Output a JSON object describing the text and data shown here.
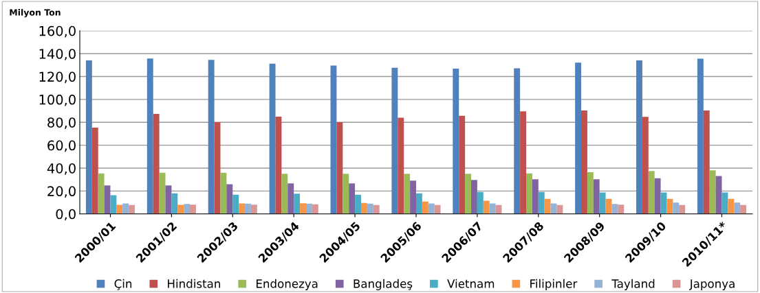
{
  "chart_data": {
    "type": "bar",
    "ylabel": "Milyon Ton",
    "categories": [
      "2000/01",
      "2001/02",
      "2002/03",
      "2003/04",
      "2004/05",
      "2005/06",
      "2006/07",
      "2007/08",
      "2008/09",
      "2009/10",
      "2010/11*"
    ],
    "series": [
      {
        "name": "Çin",
        "color": "#4f81bd",
        "values": [
          134.1,
          135.8,
          134.6,
          131.3,
          129.6,
          127.7,
          126.9,
          127.2,
          132.2,
          134.1,
          135.6
        ]
      },
      {
        "name": "Hindistan",
        "color": "#c0504d",
        "values": [
          75.4,
          87.4,
          80.2,
          85.0,
          80.2,
          84.1,
          85.7,
          89.6,
          90.3,
          84.8,
          90.3
        ]
      },
      {
        "name": "Endonezya",
        "color": "#9bbb59",
        "values": [
          35.4,
          35.9,
          35.9,
          35.0,
          35.0,
          35.0,
          35.0,
          35.4,
          36.4,
          37.4,
          38.1
        ]
      },
      {
        "name": "Bangladeş",
        "color": "#8064a2",
        "values": [
          24.9,
          24.9,
          25.9,
          26.6,
          26.6,
          29.0,
          29.7,
          30.2,
          30.2,
          31.1,
          33.1
        ]
      },
      {
        "name": "Vietnam",
        "color": "#4bacc6",
        "values": [
          16.3,
          18.0,
          16.8,
          17.7,
          16.8,
          18.0,
          19.2,
          19.2,
          18.7,
          18.7,
          18.7
        ]
      },
      {
        "name": "Filipinler",
        "color": "#f79646",
        "values": [
          7.9,
          7.9,
          9.1,
          9.3,
          9.6,
          10.8,
          11.5,
          13.2,
          13.2,
          13.2,
          13.2
        ]
      },
      {
        "name": "Tayland",
        "color": "#95b3d7",
        "values": [
          9.1,
          8.6,
          8.9,
          8.9,
          8.9,
          9.1,
          9.1,
          9.1,
          8.6,
          9.8,
          9.8
        ]
      },
      {
        "name": "Japonya",
        "color": "#d99694",
        "values": [
          7.7,
          8.1,
          8.1,
          8.4,
          7.7,
          7.7,
          7.7,
          7.7,
          8.1,
          7.7,
          7.7
        ]
      }
    ],
    "ylim": [
      0,
      160
    ],
    "yticks": [
      {
        "value": 0,
        "label": "0,0"
      },
      {
        "value": 20,
        "label": "20,0"
      },
      {
        "value": 40,
        "label": "40,0"
      },
      {
        "value": 60,
        "label": "60,0"
      },
      {
        "value": 80,
        "label": "80,0"
      },
      {
        "value": 100,
        "label": "100,0"
      },
      {
        "value": 120,
        "label": "120,0"
      },
      {
        "value": 140,
        "label": "140,0"
      },
      {
        "value": 160,
        "label": "160,0"
      }
    ],
    "grid": "y",
    "legend": "bottom"
  }
}
